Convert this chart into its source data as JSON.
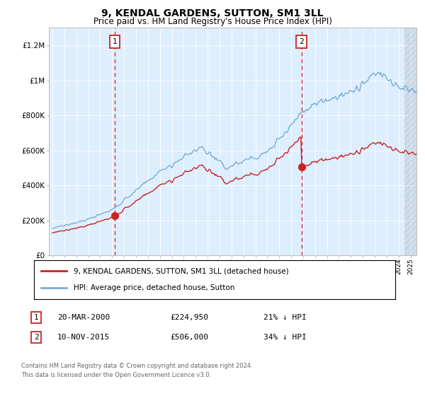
{
  "title": "9, KENDAL GARDENS, SUTTON, SM1 3LL",
  "subtitle": "Price paid vs. HM Land Registry's House Price Index (HPI)",
  "title_fontsize": 10,
  "subtitle_fontsize": 8.5,
  "background_color": "#ffffff",
  "plot_bg_color": "#ddeeff",
  "ylabel_ticks": [
    "£0",
    "£200K",
    "£400K",
    "£600K",
    "£800K",
    "£1M",
    "£1.2M"
  ],
  "ytick_values": [
    0,
    200000,
    400000,
    600000,
    800000,
    1000000,
    1200000
  ],
  "ylim": [
    0,
    1300000
  ],
  "xlim_start": 1994.7,
  "xlim_end": 2025.5,
  "hpi_color": "#7aadd4",
  "price_color": "#cc2222",
  "marker_color": "#cc2222",
  "grid_color": "#ffffff",
  "vline_color": "#dd3333",
  "label_price": "9, KENDAL GARDENS, SUTTON, SM1 3LL (detached house)",
  "label_hpi": "HPI: Average price, detached house, Sutton",
  "sale1_date": "20-MAR-2000",
  "sale1_price": "£224,950",
  "sale1_hpi": "21% ↓ HPI",
  "sale1_year": 2000.21,
  "sale1_value": 224950,
  "sale2_date": "10-NOV-2015",
  "sale2_price": "£506,000",
  "sale2_hpi": "34% ↓ HPI",
  "sale2_year": 2015.87,
  "sale2_value": 506000,
  "footer1": "Contains HM Land Registry data © Crown copyright and database right 2024.",
  "footer2": "This data is licensed under the Open Government Licence v3.0."
}
